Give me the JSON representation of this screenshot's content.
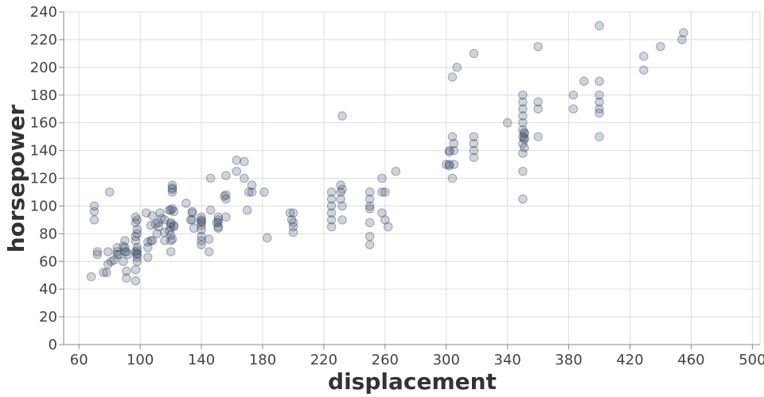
{
  "chart_data": {
    "type": "scatter",
    "title": "",
    "xlabel": "displacement",
    "ylabel": "horsepower",
    "xlim": [
      50,
      505
    ],
    "ylim": [
      0,
      240
    ],
    "x_ticks": [
      60,
      100,
      140,
      180,
      220,
      260,
      300,
      340,
      380,
      420,
      460,
      500
    ],
    "y_ticks": [
      0,
      20,
      40,
      60,
      80,
      100,
      120,
      140,
      160,
      180,
      200,
      220,
      240
    ],
    "grid": true,
    "legend": "none",
    "point_color": "#3b4a66",
    "points": [
      [
        68,
        49
      ],
      [
        70,
        96
      ],
      [
        70,
        100
      ],
      [
        70,
        90
      ],
      [
        72,
        65
      ],
      [
        72,
        67
      ],
      [
        76,
        52
      ],
      [
        78,
        52
      ],
      [
        79,
        58
      ],
      [
        79,
        67
      ],
      [
        80,
        110
      ],
      [
        81,
        60
      ],
      [
        83,
        61
      ],
      [
        85,
        65
      ],
      [
        85,
        70
      ],
      [
        85,
        67
      ],
      [
        86,
        65
      ],
      [
        89,
        60
      ],
      [
        89,
        71
      ],
      [
        90,
        67
      ],
      [
        90,
        70
      ],
      [
        90,
        75
      ],
      [
        91,
        53
      ],
      [
        91,
        67
      ],
      [
        91,
        48
      ],
      [
        92,
        65
      ],
      [
        97,
        46
      ],
      [
        97,
        54
      ],
      [
        97,
        67
      ],
      [
        97,
        75
      ],
      [
        97,
        78
      ],
      [
        97,
        88
      ],
      [
        97,
        92
      ],
      [
        98,
        60
      ],
      [
        98,
        63
      ],
      [
        98,
        65
      ],
      [
        98,
        66
      ],
      [
        98,
        68
      ],
      [
        98,
        70
      ],
      [
        98,
        80
      ],
      [
        98,
        83
      ],
      [
        98,
        90
      ],
      [
        104,
        95
      ],
      [
        105,
        63
      ],
      [
        105,
        70
      ],
      [
        105,
        74
      ],
      [
        107,
        75
      ],
      [
        107,
        86
      ],
      [
        108,
        75
      ],
      [
        108,
        93
      ],
      [
        110,
        87
      ],
      [
        111,
        80
      ],
      [
        112,
        85
      ],
      [
        112,
        88
      ],
      [
        113,
        95
      ],
      [
        114,
        91
      ],
      [
        116,
        75
      ],
      [
        116,
        81
      ],
      [
        116,
        90
      ],
      [
        119,
        82
      ],
      [
        119,
        97
      ],
      [
        120,
        67
      ],
      [
        120,
        75
      ],
      [
        120,
        79
      ],
      [
        120,
        85
      ],
      [
        120,
        87
      ],
      [
        120,
        88
      ],
      [
        120,
        97
      ],
      [
        121,
        76
      ],
      [
        121,
        98
      ],
      [
        121,
        110
      ],
      [
        121,
        112
      ],
      [
        121,
        113
      ],
      [
        121,
        115
      ],
      [
        122,
        85
      ],
      [
        122,
        86
      ],
      [
        122,
        96
      ],
      [
        130,
        102
      ],
      [
        133,
        90
      ],
      [
        134,
        90
      ],
      [
        134,
        95
      ],
      [
        134,
        96
      ],
      [
        135,
        84
      ],
      [
        140,
        72
      ],
      [
        140,
        75
      ],
      [
        140,
        78
      ],
      [
        140,
        83
      ],
      [
        140,
        86
      ],
      [
        140,
        88
      ],
      [
        140,
        89
      ],
      [
        140,
        90
      ],
      [
        140,
        92
      ],
      [
        145,
        67
      ],
      [
        145,
        76
      ],
      [
        146,
        97
      ],
      [
        146,
        120
      ],
      [
        150,
        88
      ],
      [
        151,
        84
      ],
      [
        151,
        85
      ],
      [
        151,
        88
      ],
      [
        151,
        90
      ],
      [
        151,
        92
      ],
      [
        155,
        107
      ],
      [
        156,
        92
      ],
      [
        156,
        105
      ],
      [
        156,
        108
      ],
      [
        156,
        122
      ],
      [
        163,
        125
      ],
      [
        163,
        133
      ],
      [
        168,
        120
      ],
      [
        168,
        132
      ],
      [
        170,
        97
      ],
      [
        171,
        110
      ],
      [
        173,
        110
      ],
      [
        173,
        115
      ],
      [
        181,
        110
      ],
      [
        183,
        77
      ],
      [
        198,
        95
      ],
      [
        199,
        90
      ],
      [
        200,
        81
      ],
      [
        200,
        85
      ],
      [
        200,
        88
      ],
      [
        200,
        95
      ],
      [
        225,
        85
      ],
      [
        225,
        90
      ],
      [
        225,
        95
      ],
      [
        225,
        100
      ],
      [
        225,
        105
      ],
      [
        225,
        110
      ],
      [
        231,
        105
      ],
      [
        231,
        110
      ],
      [
        231,
        115
      ],
      [
        232,
        90
      ],
      [
        232,
        100
      ],
      [
        232,
        112
      ],
      [
        232,
        165
      ],
      [
        250,
        72
      ],
      [
        250,
        78
      ],
      [
        250,
        88
      ],
      [
        250,
        98
      ],
      [
        250,
        100
      ],
      [
        250,
        105
      ],
      [
        250,
        110
      ],
      [
        258,
        95
      ],
      [
        258,
        110
      ],
      [
        258,
        120
      ],
      [
        260,
        90
      ],
      [
        260,
        110
      ],
      [
        262,
        85
      ],
      [
        267,
        125
      ],
      [
        300,
        130
      ],
      [
        302,
        129
      ],
      [
        302,
        130
      ],
      [
        302,
        139
      ],
      [
        302,
        140
      ],
      [
        304,
        120
      ],
      [
        304,
        150
      ],
      [
        304,
        193
      ],
      [
        305,
        130
      ],
      [
        305,
        140
      ],
      [
        305,
        145
      ],
      [
        307,
        200
      ],
      [
        318,
        135
      ],
      [
        318,
        140
      ],
      [
        318,
        145
      ],
      [
        318,
        150
      ],
      [
        318,
        210
      ],
      [
        340,
        160
      ],
      [
        350,
        105
      ],
      [
        350,
        125
      ],
      [
        350,
        138
      ],
      [
        350,
        145
      ],
      [
        350,
        150
      ],
      [
        350,
        155
      ],
      [
        350,
        160
      ],
      [
        350,
        165
      ],
      [
        350,
        170
      ],
      [
        350,
        175
      ],
      [
        350,
        180
      ],
      [
        351,
        142
      ],
      [
        351,
        148
      ],
      [
        351,
        149
      ],
      [
        351,
        152
      ],
      [
        351,
        153
      ],
      [
        360,
        150
      ],
      [
        360,
        170
      ],
      [
        360,
        175
      ],
      [
        360,
        215
      ],
      [
        383,
        170
      ],
      [
        383,
        180
      ],
      [
        390,
        190
      ],
      [
        400,
        150
      ],
      [
        400,
        167
      ],
      [
        400,
        170
      ],
      [
        400,
        175
      ],
      [
        400,
        180
      ],
      [
        400,
        190
      ],
      [
        400,
        230
      ],
      [
        429,
        198
      ],
      [
        429,
        208
      ],
      [
        440,
        215
      ],
      [
        454,
        220
      ],
      [
        455,
        225
      ]
    ]
  }
}
